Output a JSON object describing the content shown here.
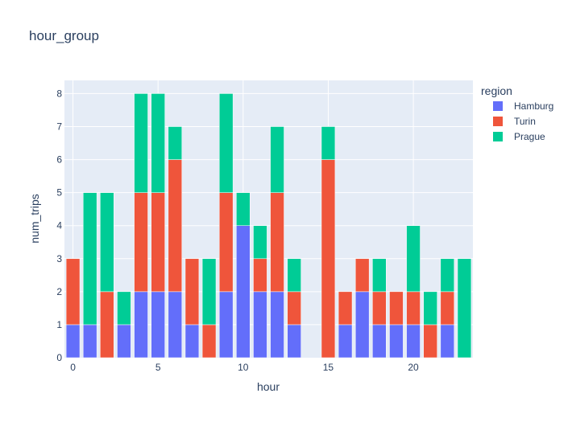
{
  "chart_data": {
    "type": "bar",
    "barmode": "stack",
    "title": "hour_group",
    "xlabel": "hour",
    "ylabel": "num_trips",
    "x": [
      0,
      1,
      2,
      3,
      4,
      5,
      6,
      7,
      8,
      9,
      10,
      11,
      12,
      13,
      14,
      15,
      16,
      17,
      18,
      19,
      20,
      21,
      22,
      23
    ],
    "xlim": [
      -0.5,
      23.5
    ],
    "ylim": [
      0,
      8.4
    ],
    "x_ticks": [
      0,
      5,
      10,
      15,
      20
    ],
    "y_ticks": [
      0,
      1,
      2,
      3,
      4,
      5,
      6,
      7,
      8
    ],
    "grid": true,
    "legend_title": "region",
    "legend_position": "top-right outside",
    "series": [
      {
        "name": "Hamburg",
        "color": "#636efa",
        "values": [
          1,
          1,
          0,
          1,
          2,
          2,
          2,
          1,
          0,
          2,
          4,
          2,
          2,
          1,
          0,
          0,
          1,
          2,
          1,
          1,
          1,
          0,
          1,
          0
        ]
      },
      {
        "name": "Turin",
        "color": "#ef553b",
        "values": [
          2,
          0,
          2,
          0,
          3,
          3,
          4,
          2,
          1,
          3,
          0,
          1,
          3,
          1,
          0,
          6,
          1,
          1,
          1,
          1,
          1,
          1,
          1,
          0
        ]
      },
      {
        "name": "Prague",
        "color": "#00cc96",
        "values": [
          0,
          4,
          3,
          1,
          3,
          3,
          1,
          0,
          2,
          3,
          1,
          1,
          2,
          1,
          0,
          1,
          0,
          0,
          1,
          0,
          2,
          1,
          1,
          3
        ]
      }
    ]
  },
  "colors": {
    "plot_bg": "#e5ecf6",
    "grid": "#ffffff",
    "text": "#2a3f5f"
  }
}
